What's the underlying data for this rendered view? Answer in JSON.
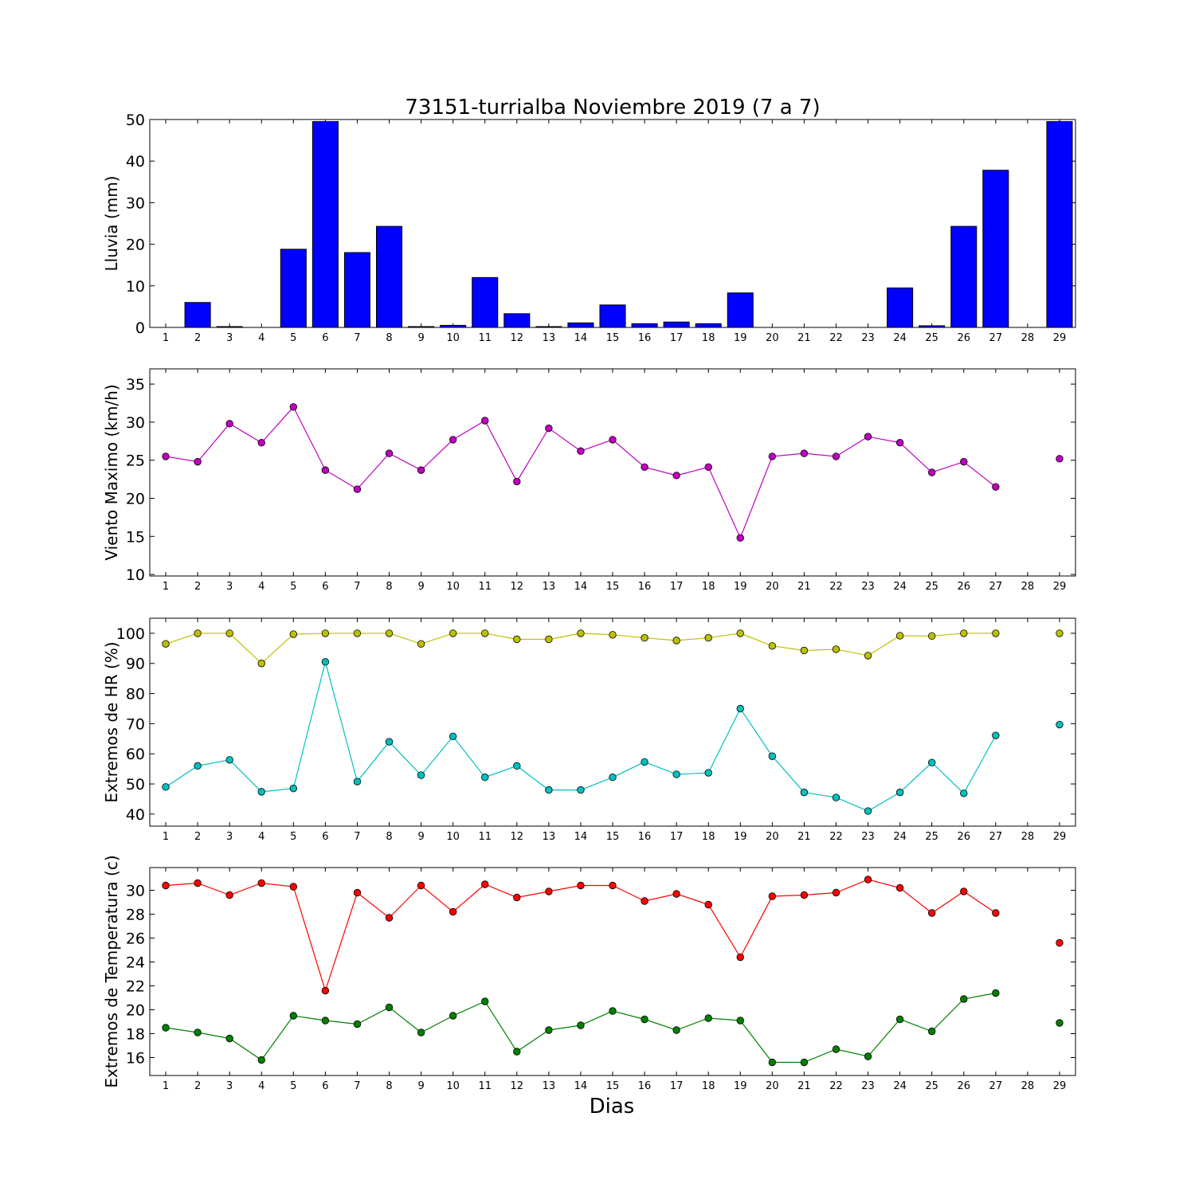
{
  "title": "73151-turrialba Noviembre 2019  (7 a 7)",
  "xlabel": "Dias",
  "chart_data": [
    {
      "type": "bar",
      "ylabel": "Lluvia (mm)",
      "ylim": [
        0,
        50
      ],
      "yticks": [
        0,
        10,
        20,
        30,
        40,
        50
      ],
      "xlim": [
        0.5,
        29.5
      ],
      "x": [
        1,
        2,
        3,
        4,
        5,
        6,
        7,
        8,
        9,
        10,
        11,
        12,
        13,
        14,
        15,
        16,
        17,
        18,
        19,
        20,
        21,
        22,
        23,
        24,
        25,
        26,
        27,
        28,
        29
      ],
      "series": [
        {
          "color": "#0000ff",
          "values": [
            0,
            6.0,
            0.2,
            0,
            18.8,
            49.5,
            18.0,
            24.3,
            0.2,
            0.5,
            12.0,
            3.3,
            0.2,
            1.1,
            5.4,
            0.9,
            1.3,
            0.9,
            8.3,
            0,
            0,
            0,
            0,
            9.5,
            0.4,
            24.3,
            37.8,
            null,
            49.5
          ]
        }
      ]
    },
    {
      "type": "line",
      "ylabel": "Viento Maximo (km/h)",
      "ylim": [
        9.8,
        37
      ],
      "yticks": [
        10,
        15,
        20,
        25,
        30,
        35
      ],
      "xlim": [
        0.5,
        29.5
      ],
      "x": [
        1,
        2,
        3,
        4,
        5,
        6,
        7,
        8,
        9,
        10,
        11,
        12,
        13,
        14,
        15,
        16,
        17,
        18,
        19,
        20,
        21,
        22,
        23,
        24,
        25,
        26,
        27,
        28,
        29
      ],
      "series": [
        {
          "color": "#bf00bf",
          "values": [
            25.5,
            24.8,
            29.8,
            27.3,
            32.0,
            23.7,
            21.2,
            25.9,
            23.7,
            27.7,
            30.2,
            22.2,
            29.2,
            26.2,
            27.7,
            24.1,
            23.0,
            24.1,
            14.8,
            25.5,
            25.9,
            25.5,
            28.1,
            27.3,
            23.4,
            24.8,
            21.5,
            null,
            25.2
          ]
        }
      ]
    },
    {
      "type": "line",
      "ylabel": "Extremos de HR (%)",
      "ylim": [
        36,
        105
      ],
      "yticks": [
        40,
        50,
        60,
        70,
        80,
        90,
        100
      ],
      "xlim": [
        0.5,
        29.5
      ],
      "x": [
        1,
        2,
        3,
        4,
        5,
        6,
        7,
        8,
        9,
        10,
        11,
        12,
        13,
        14,
        15,
        16,
        17,
        18,
        19,
        20,
        21,
        22,
        23,
        24,
        25,
        26,
        27,
        28,
        29
      ],
      "series": [
        {
          "color": "#bfbf00",
          "values": [
            96.5,
            100,
            100,
            90,
            99.7,
            100,
            100,
            100,
            96.5,
            100,
            100,
            98,
            98,
            100,
            99.5,
            98.5,
            97.6,
            98.5,
            100,
            95.8,
            94.3,
            94.7,
            92.6,
            99.2,
            99.1,
            100,
            100,
            null,
            100
          ]
        },
        {
          "color": "#00bfbf",
          "values": [
            49,
            56,
            58,
            47.4,
            48.5,
            90.5,
            50.8,
            64,
            52.9,
            65.8,
            52.2,
            56,
            48,
            48,
            52.2,
            57.3,
            53.2,
            53.7,
            75,
            59.2,
            47.2,
            45.5,
            41,
            47.2,
            57.1,
            46.9,
            66.1,
            null,
            69.7
          ]
        }
      ]
    },
    {
      "type": "line",
      "ylabel": "Extremos de Temperatura (c)",
      "ylim": [
        14.5,
        31.9
      ],
      "yticks": [
        16,
        18,
        20,
        22,
        24,
        26,
        28,
        30
      ],
      "xlim": [
        0.5,
        29.5
      ],
      "x": [
        1,
        2,
        3,
        4,
        5,
        6,
        7,
        8,
        9,
        10,
        11,
        12,
        13,
        14,
        15,
        16,
        17,
        18,
        19,
        20,
        21,
        22,
        23,
        24,
        25,
        26,
        27,
        28,
        29
      ],
      "series": [
        {
          "color": "#ff0000",
          "values": [
            30.4,
            30.6,
            29.6,
            30.6,
            30.3,
            21.6,
            29.8,
            27.7,
            30.4,
            28.2,
            30.5,
            29.4,
            29.9,
            30.4,
            30.4,
            29.1,
            29.7,
            28.8,
            24.4,
            29.5,
            29.6,
            29.8,
            30.9,
            30.2,
            28.1,
            29.9,
            28.1,
            null,
            25.6
          ]
        },
        {
          "color": "#008000",
          "values": [
            18.5,
            18.1,
            17.6,
            15.8,
            19.5,
            19.1,
            18.8,
            20.2,
            18.1,
            19.5,
            20.7,
            16.5,
            18.3,
            18.7,
            19.9,
            19.2,
            18.3,
            19.3,
            19.1,
            15.6,
            15.6,
            16.7,
            16.1,
            19.2,
            18.2,
            20.9,
            21.4,
            null,
            18.9
          ]
        }
      ]
    }
  ]
}
